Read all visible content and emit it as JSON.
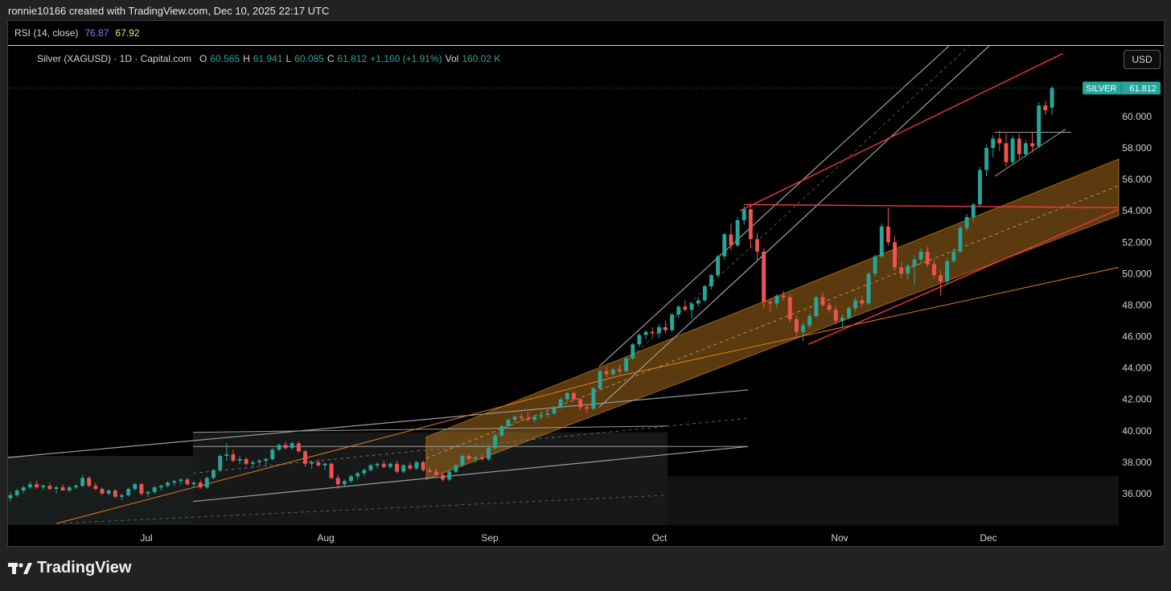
{
  "caption": "ronnie10166 created with TradingView.com, Dec 10, 2025 22:17 UTC",
  "rsi": {
    "label": "RSI (14, close)",
    "value1": "76.87",
    "value2": "67.92"
  },
  "legend": {
    "name": "Silver (XAGUSD) · 1D · Capital.com",
    "o_label": "O",
    "o": "60.565",
    "h_label": "H",
    "h": "61.941",
    "l_label": "L",
    "l": "60.085",
    "c_label": "C",
    "c": "61.812",
    "change": "+1.160 (+1.91%)",
    "vol_label": "Vol",
    "vol": "160.02 K"
  },
  "currency_button": "USD",
  "price_tag": {
    "symbol": "SILVER",
    "price": "61.812"
  },
  "footer_logo_text": "TradingView",
  "colors": {
    "up": "#26a69a",
    "down": "#ef5350",
    "channel": "#c8811f",
    "redline": "#f23645",
    "grayline": "#9e9e9e"
  },
  "chart_data": {
    "type": "candlestick",
    "symbol": "XAGUSD",
    "timeframe": "1D",
    "ylim": [
      34,
      64.5
    ],
    "y_ticks": [
      "60.000",
      "58.000",
      "56.000",
      "54.000",
      "52.000",
      "50.000",
      "48.000",
      "46.000",
      "44.000",
      "42.000",
      "40.000",
      "38.000",
      "36.000"
    ],
    "x_labels": [
      "Jul",
      "Aug",
      "Sep",
      "Oct",
      "Nov",
      "Dec"
    ],
    "candles": [
      {
        "o": 35.7,
        "h": 36.1,
        "l": 35.5,
        "c": 35.9
      },
      {
        "o": 35.9,
        "h": 36.3,
        "l": 35.8,
        "c": 36.2
      },
      {
        "o": 36.2,
        "h": 36.5,
        "l": 36.0,
        "c": 36.4
      },
      {
        "o": 36.4,
        "h": 36.8,
        "l": 36.3,
        "c": 36.6
      },
      {
        "o": 36.6,
        "h": 36.8,
        "l": 36.3,
        "c": 36.4
      },
      {
        "o": 36.4,
        "h": 36.6,
        "l": 36.2,
        "c": 36.5
      },
      {
        "o": 36.5,
        "h": 36.7,
        "l": 36.2,
        "c": 36.3
      },
      {
        "o": 36.3,
        "h": 36.5,
        "l": 36.0,
        "c": 36.4
      },
      {
        "o": 36.4,
        "h": 36.6,
        "l": 36.2,
        "c": 36.2
      },
      {
        "o": 36.2,
        "h": 36.5,
        "l": 36.1,
        "c": 36.4
      },
      {
        "o": 36.4,
        "h": 36.6,
        "l": 36.3,
        "c": 36.5
      },
      {
        "o": 36.5,
        "h": 37.2,
        "l": 36.4,
        "c": 37.0
      },
      {
        "o": 37.0,
        "h": 37.1,
        "l": 36.4,
        "c": 36.5
      },
      {
        "o": 36.5,
        "h": 36.7,
        "l": 36.2,
        "c": 36.3
      },
      {
        "o": 36.3,
        "h": 36.4,
        "l": 35.9,
        "c": 36.0
      },
      {
        "o": 36.0,
        "h": 36.3,
        "l": 35.9,
        "c": 36.2
      },
      {
        "o": 36.2,
        "h": 36.3,
        "l": 35.7,
        "c": 35.8
      },
      {
        "o": 35.8,
        "h": 36.0,
        "l": 35.6,
        "c": 35.9
      },
      {
        "o": 35.9,
        "h": 36.4,
        "l": 35.8,
        "c": 36.3
      },
      {
        "o": 36.3,
        "h": 36.7,
        "l": 36.2,
        "c": 36.6
      },
      {
        "o": 36.6,
        "h": 36.7,
        "l": 35.9,
        "c": 36.0
      },
      {
        "o": 36.0,
        "h": 36.2,
        "l": 35.8,
        "c": 36.1
      },
      {
        "o": 36.1,
        "h": 36.5,
        "l": 36.0,
        "c": 36.4
      },
      {
        "o": 36.4,
        "h": 36.6,
        "l": 36.2,
        "c": 36.5
      },
      {
        "o": 36.5,
        "h": 36.8,
        "l": 36.4,
        "c": 36.7
      },
      {
        "o": 36.7,
        "h": 36.9,
        "l": 36.5,
        "c": 36.8
      },
      {
        "o": 36.8,
        "h": 37.0,
        "l": 36.6,
        "c": 36.9
      },
      {
        "o": 36.9,
        "h": 37.0,
        "l": 36.5,
        "c": 36.6
      },
      {
        "o": 36.6,
        "h": 36.8,
        "l": 36.4,
        "c": 36.7
      },
      {
        "o": 36.7,
        "h": 36.9,
        "l": 36.3,
        "c": 36.4
      },
      {
        "o": 36.4,
        "h": 37.1,
        "l": 36.3,
        "c": 37.0
      },
      {
        "o": 37.0,
        "h": 37.6,
        "l": 36.9,
        "c": 37.5
      },
      {
        "o": 37.5,
        "h": 38.5,
        "l": 37.4,
        "c": 38.4
      },
      {
        "o": 38.4,
        "h": 39.2,
        "l": 38.1,
        "c": 38.5
      },
      {
        "o": 38.5,
        "h": 38.8,
        "l": 38.0,
        "c": 38.1
      },
      {
        "o": 38.1,
        "h": 38.4,
        "l": 37.9,
        "c": 38.2
      },
      {
        "o": 38.2,
        "h": 38.3,
        "l": 37.8,
        "c": 37.9
      },
      {
        "o": 37.9,
        "h": 38.1,
        "l": 37.7,
        "c": 38.0
      },
      {
        "o": 38.0,
        "h": 38.2,
        "l": 37.8,
        "c": 38.1
      },
      {
        "o": 38.1,
        "h": 38.3,
        "l": 37.8,
        "c": 38.2
      },
      {
        "o": 38.2,
        "h": 38.9,
        "l": 38.1,
        "c": 38.8
      },
      {
        "o": 38.8,
        "h": 39.2,
        "l": 38.7,
        "c": 39.1
      },
      {
        "o": 39.1,
        "h": 39.3,
        "l": 38.8,
        "c": 38.9
      },
      {
        "o": 38.9,
        "h": 39.3,
        "l": 38.8,
        "c": 39.2
      },
      {
        "o": 39.2,
        "h": 39.3,
        "l": 38.6,
        "c": 38.7
      },
      {
        "o": 38.7,
        "h": 38.8,
        "l": 37.7,
        "c": 37.9
      },
      {
        "o": 37.9,
        "h": 38.1,
        "l": 37.6,
        "c": 38.0
      },
      {
        "o": 38.0,
        "h": 38.2,
        "l": 37.7,
        "c": 37.8
      },
      {
        "o": 37.8,
        "h": 38.0,
        "l": 37.5,
        "c": 37.9
      },
      {
        "o": 37.9,
        "h": 38.0,
        "l": 36.9,
        "c": 37.0
      },
      {
        "o": 37.0,
        "h": 37.2,
        "l": 36.3,
        "c": 36.6
      },
      {
        "o": 36.6,
        "h": 36.9,
        "l": 36.4,
        "c": 36.8
      },
      {
        "o": 36.8,
        "h": 37.2,
        "l": 36.7,
        "c": 37.1
      },
      {
        "o": 37.1,
        "h": 37.4,
        "l": 36.9,
        "c": 37.3
      },
      {
        "o": 37.3,
        "h": 37.6,
        "l": 37.1,
        "c": 37.5
      },
      {
        "o": 37.5,
        "h": 37.9,
        "l": 37.4,
        "c": 37.8
      },
      {
        "o": 37.8,
        "h": 38.0,
        "l": 37.6,
        "c": 37.9
      },
      {
        "o": 37.9,
        "h": 38.1,
        "l": 37.6,
        "c": 37.7
      },
      {
        "o": 37.7,
        "h": 38.0,
        "l": 37.6,
        "c": 37.9
      },
      {
        "o": 37.9,
        "h": 38.1,
        "l": 37.3,
        "c": 37.4
      },
      {
        "o": 37.4,
        "h": 37.9,
        "l": 37.3,
        "c": 37.8
      },
      {
        "o": 37.8,
        "h": 38.0,
        "l": 37.5,
        "c": 37.6
      },
      {
        "o": 37.6,
        "h": 38.1,
        "l": 37.5,
        "c": 38.0
      },
      {
        "o": 38.0,
        "h": 38.1,
        "l": 37.4,
        "c": 37.5
      },
      {
        "o": 37.5,
        "h": 37.7,
        "l": 37.3,
        "c": 37.4
      },
      {
        "o": 37.4,
        "h": 37.6,
        "l": 37.1,
        "c": 37.2
      },
      {
        "o": 37.2,
        "h": 37.4,
        "l": 36.8,
        "c": 36.9
      },
      {
        "o": 36.9,
        "h": 37.5,
        "l": 36.8,
        "c": 37.4
      },
      {
        "o": 37.4,
        "h": 37.9,
        "l": 37.3,
        "c": 37.8
      },
      {
        "o": 37.8,
        "h": 38.5,
        "l": 37.7,
        "c": 38.4
      },
      {
        "o": 38.4,
        "h": 38.5,
        "l": 38.1,
        "c": 38.2
      },
      {
        "o": 38.2,
        "h": 38.4,
        "l": 38.0,
        "c": 38.3
      },
      {
        "o": 38.3,
        "h": 38.5,
        "l": 38.1,
        "c": 38.2
      },
      {
        "o": 38.2,
        "h": 39.0,
        "l": 38.1,
        "c": 38.9
      },
      {
        "o": 38.9,
        "h": 39.8,
        "l": 38.8,
        "c": 39.7
      },
      {
        "o": 39.7,
        "h": 40.4,
        "l": 39.6,
        "c": 40.3
      },
      {
        "o": 40.3,
        "h": 40.8,
        "l": 40.1,
        "c": 40.7
      },
      {
        "o": 40.7,
        "h": 41.0,
        "l": 40.5,
        "c": 40.9
      },
      {
        "o": 40.9,
        "h": 41.1,
        "l": 40.6,
        "c": 40.8
      },
      {
        "o": 40.8,
        "h": 41.2,
        "l": 40.6,
        "c": 40.7
      },
      {
        "o": 40.7,
        "h": 41.0,
        "l": 40.5,
        "c": 40.9
      },
      {
        "o": 40.9,
        "h": 41.2,
        "l": 40.7,
        "c": 41.0
      },
      {
        "o": 41.0,
        "h": 41.3,
        "l": 40.8,
        "c": 41.1
      },
      {
        "o": 41.1,
        "h": 41.6,
        "l": 41.0,
        "c": 41.5
      },
      {
        "o": 41.5,
        "h": 42.1,
        "l": 41.4,
        "c": 42.0
      },
      {
        "o": 42.0,
        "h": 42.5,
        "l": 41.8,
        "c": 42.4
      },
      {
        "o": 42.4,
        "h": 42.5,
        "l": 41.9,
        "c": 42.0
      },
      {
        "o": 42.0,
        "h": 42.1,
        "l": 41.3,
        "c": 41.5
      },
      {
        "o": 41.5,
        "h": 41.7,
        "l": 41.1,
        "c": 41.4
      },
      {
        "o": 41.4,
        "h": 42.8,
        "l": 41.3,
        "c": 42.7
      },
      {
        "o": 42.7,
        "h": 43.9,
        "l": 42.6,
        "c": 43.8
      },
      {
        "o": 43.8,
        "h": 44.1,
        "l": 43.4,
        "c": 43.6
      },
      {
        "o": 43.6,
        "h": 44.0,
        "l": 43.5,
        "c": 43.9
      },
      {
        "o": 43.9,
        "h": 44.2,
        "l": 43.6,
        "c": 43.8
      },
      {
        "o": 43.8,
        "h": 44.7,
        "l": 43.7,
        "c": 44.6
      },
      {
        "o": 44.6,
        "h": 45.6,
        "l": 44.5,
        "c": 45.5
      },
      {
        "o": 45.5,
        "h": 46.2,
        "l": 45.3,
        "c": 46.1
      },
      {
        "o": 46.1,
        "h": 46.4,
        "l": 45.8,
        "c": 46.3
      },
      {
        "o": 46.3,
        "h": 46.6,
        "l": 46.0,
        "c": 46.2
      },
      {
        "o": 46.2,
        "h": 46.8,
        "l": 45.9,
        "c": 46.6
      },
      {
        "o": 46.6,
        "h": 47.0,
        "l": 46.2,
        "c": 46.4
      },
      {
        "o": 46.4,
        "h": 47.5,
        "l": 46.3,
        "c": 47.4
      },
      {
        "o": 47.4,
        "h": 48.0,
        "l": 47.2,
        "c": 47.9
      },
      {
        "o": 47.9,
        "h": 48.3,
        "l": 47.6,
        "c": 47.7
      },
      {
        "o": 47.7,
        "h": 48.2,
        "l": 47.1,
        "c": 48.1
      },
      {
        "o": 48.1,
        "h": 48.5,
        "l": 47.9,
        "c": 48.3
      },
      {
        "o": 48.3,
        "h": 49.3,
        "l": 48.2,
        "c": 49.2
      },
      {
        "o": 49.2,
        "h": 50.0,
        "l": 49.0,
        "c": 49.9
      },
      {
        "o": 49.9,
        "h": 51.2,
        "l": 49.8,
        "c": 51.1
      },
      {
        "o": 51.1,
        "h": 52.6,
        "l": 50.9,
        "c": 52.5
      },
      {
        "o": 52.5,
        "h": 53.2,
        "l": 51.5,
        "c": 51.8
      },
      {
        "o": 51.8,
        "h": 53.6,
        "l": 51.7,
        "c": 53.4
      },
      {
        "o": 53.4,
        "h": 54.3,
        "l": 53.1,
        "c": 54.1
      },
      {
        "o": 54.1,
        "h": 54.4,
        "l": 51.6,
        "c": 52.2
      },
      {
        "o": 52.2,
        "h": 52.6,
        "l": 50.8,
        "c": 51.4
      },
      {
        "o": 51.4,
        "h": 51.6,
        "l": 47.8,
        "c": 48.2
      },
      {
        "o": 48.2,
        "h": 48.4,
        "l": 47.6,
        "c": 48.1
      },
      {
        "o": 48.1,
        "h": 48.7,
        "l": 47.8,
        "c": 48.6
      },
      {
        "o": 48.6,
        "h": 48.9,
        "l": 48.3,
        "c": 48.5
      },
      {
        "o": 48.5,
        "h": 48.7,
        "l": 46.9,
        "c": 47.1
      },
      {
        "o": 47.1,
        "h": 47.3,
        "l": 45.9,
        "c": 46.3
      },
      {
        "o": 46.3,
        "h": 46.9,
        "l": 45.7,
        "c": 46.7
      },
      {
        "o": 46.7,
        "h": 47.5,
        "l": 46.5,
        "c": 47.3
      },
      {
        "o": 47.3,
        "h": 48.6,
        "l": 47.2,
        "c": 48.5
      },
      {
        "o": 48.5,
        "h": 48.8,
        "l": 47.9,
        "c": 48.0
      },
      {
        "o": 48.0,
        "h": 48.2,
        "l": 47.5,
        "c": 47.7
      },
      {
        "o": 47.7,
        "h": 47.9,
        "l": 46.8,
        "c": 47.0
      },
      {
        "o": 47.0,
        "h": 47.4,
        "l": 46.6,
        "c": 47.2
      },
      {
        "o": 47.2,
        "h": 47.9,
        "l": 47.1,
        "c": 47.8
      },
      {
        "o": 47.8,
        "h": 48.5,
        "l": 47.6,
        "c": 48.3
      },
      {
        "o": 48.3,
        "h": 48.6,
        "l": 47.9,
        "c": 48.1
      },
      {
        "o": 48.1,
        "h": 50.1,
        "l": 48.0,
        "c": 50.0
      },
      {
        "o": 50.0,
        "h": 51.2,
        "l": 49.8,
        "c": 51.1
      },
      {
        "o": 51.1,
        "h": 53.2,
        "l": 51.0,
        "c": 53.0
      },
      {
        "o": 53.0,
        "h": 54.2,
        "l": 51.8,
        "c": 52.0
      },
      {
        "o": 52.0,
        "h": 52.4,
        "l": 50.2,
        "c": 50.4
      },
      {
        "o": 50.4,
        "h": 50.7,
        "l": 49.7,
        "c": 50.0
      },
      {
        "o": 50.0,
        "h": 50.6,
        "l": 49.6,
        "c": 50.5
      },
      {
        "o": 50.5,
        "h": 51.2,
        "l": 49.3,
        "c": 50.9
      },
      {
        "o": 50.9,
        "h": 51.6,
        "l": 50.6,
        "c": 51.4
      },
      {
        "o": 51.4,
        "h": 51.7,
        "l": 50.4,
        "c": 50.6
      },
      {
        "o": 50.6,
        "h": 50.9,
        "l": 49.7,
        "c": 49.9
      },
      {
        "o": 49.9,
        "h": 50.2,
        "l": 48.6,
        "c": 49.5
      },
      {
        "o": 49.5,
        "h": 51.0,
        "l": 49.3,
        "c": 50.8
      },
      {
        "o": 50.8,
        "h": 51.6,
        "l": 50.7,
        "c": 51.4
      },
      {
        "o": 51.4,
        "h": 53.1,
        "l": 51.3,
        "c": 52.9
      },
      {
        "o": 52.9,
        "h": 53.8,
        "l": 52.7,
        "c": 53.6
      },
      {
        "o": 53.6,
        "h": 54.5,
        "l": 53.3,
        "c": 54.4
      },
      {
        "o": 54.4,
        "h": 56.8,
        "l": 54.3,
        "c": 56.6
      },
      {
        "o": 56.6,
        "h": 58.2,
        "l": 56.2,
        "c": 58.0
      },
      {
        "o": 58.0,
        "h": 58.8,
        "l": 57.4,
        "c": 58.6
      },
      {
        "o": 58.6,
        "h": 59.1,
        "l": 57.8,
        "c": 58.3
      },
      {
        "o": 58.3,
        "h": 58.9,
        "l": 56.8,
        "c": 57.1
      },
      {
        "o": 57.1,
        "h": 58.8,
        "l": 56.9,
        "c": 58.6
      },
      {
        "o": 58.6,
        "h": 58.9,
        "l": 57.3,
        "c": 57.6
      },
      {
        "o": 57.6,
        "h": 58.5,
        "l": 57.4,
        "c": 58.3
      },
      {
        "o": 58.3,
        "h": 59.0,
        "l": 57.7,
        "c": 58.1
      },
      {
        "o": 58.1,
        "h": 60.9,
        "l": 58.0,
        "c": 60.7
      },
      {
        "o": 60.7,
        "h": 61.0,
        "l": 60.1,
        "c": 60.4
      },
      {
        "o": 60.565,
        "h": 61.941,
        "l": 60.085,
        "c": 61.812
      }
    ]
  }
}
